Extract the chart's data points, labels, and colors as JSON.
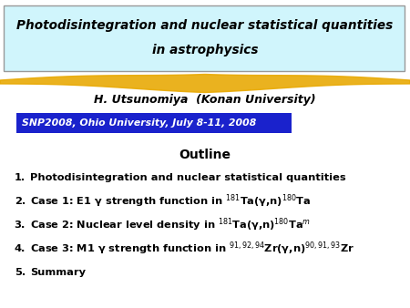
{
  "title_line1": "Photodisintegration and nuclear statistical quantities",
  "title_line2": "in astrophysics",
  "title_bg_color": "#d0f5fc",
  "title_border_color": "#999999",
  "author": "H. Utsunomiya  (Konan University)",
  "conference": "SNP2008, Ohio University, July 8-11, 2008",
  "conf_bg_color": "#1a22cc",
  "conf_text_color": "#ffffff",
  "outline_title": "Outline",
  "items": [
    "Photodisintegration and nuclear statistical quantities",
    "Case 1: E1 γ strength function in $^{181}$Ta(γ,n)$^{180}$Ta",
    "Case 2: Nuclear level density in $^{181}$Ta(γ,n)$^{180}$Ta$^{m}$",
    "Case 3: M1 γ strength function in $^{91,92,94}$Zr(γ,n)$^{90,91,93}$Zr",
    "Summary"
  ],
  "bg_color": "#ffffff",
  "highlight_color": "#e8a800"
}
